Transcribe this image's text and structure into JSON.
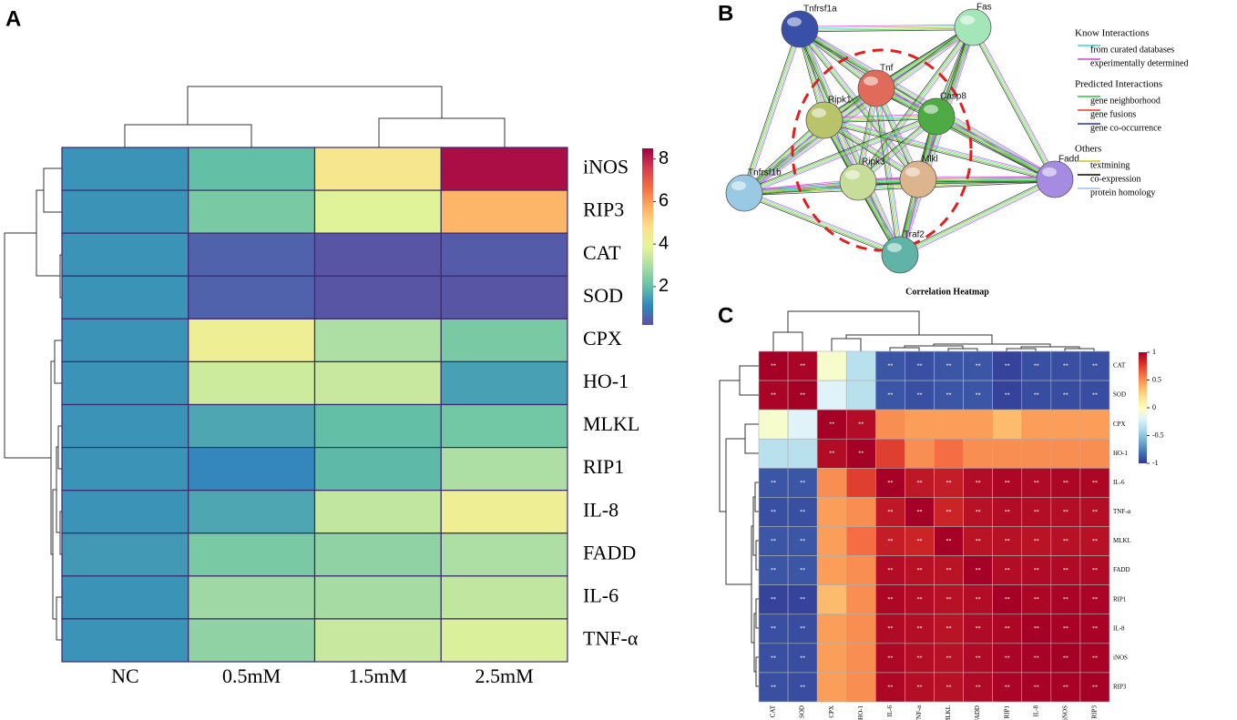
{
  "panel_labels": [
    "A",
    "B",
    "C"
  ],
  "chart_data": [
    {
      "type": "heatmap",
      "rows": [
        "iNOS",
        "RIP3",
        "CAT",
        "SOD",
        "CPX",
        "HO-1",
        "MLKL",
        "RIP1",
        "IL-8",
        "FADD",
        "IL-6",
        "TNF-α"
      ],
      "columns": [
        "NC",
        "0.5mM",
        "1.5mM",
        "2.5mM"
      ],
      "values": [
        [
          1.3,
          2.0,
          4.5,
          8.3
        ],
        [
          1.3,
          2.3,
          3.8,
          5.6
        ],
        [
          1.3,
          0.5,
          0.3,
          0.4
        ],
        [
          1.3,
          0.5,
          0.3,
          0.3
        ],
        [
          1.3,
          4.2,
          3.0,
          2.3
        ],
        [
          1.3,
          3.5,
          3.4,
          1.5
        ],
        [
          1.3,
          1.6,
          2.0,
          2.2
        ],
        [
          1.3,
          1.1,
          1.9,
          3.0
        ],
        [
          1.3,
          1.6,
          3.3,
          4.2
        ],
        [
          1.4,
          2.3,
          2.6,
          3.0
        ],
        [
          1.3,
          2.8,
          2.9,
          3.3
        ],
        [
          1.3,
          2.6,
          3.4,
          3.7
        ]
      ],
      "zlim": [
        0.2,
        8.5
      ],
      "zticks": [
        2,
        4,
        6,
        8
      ],
      "colormap": [
        "#5e4fa2",
        "#3288bd",
        "#66c2a5",
        "#abdda4",
        "#e6f598",
        "#fee08b",
        "#fdae61",
        "#f46d43",
        "#d53e4f",
        "#9e0142"
      ]
    },
    {
      "type": "heatmap",
      "title": "Correlation Heatmap",
      "rows": [
        "CAT",
        "SOD",
        "CPX",
        "HO-1",
        "IL-6",
        "TNF-α",
        "MLKL",
        "FADD",
        "RIP1",
        "IL-8",
        "iNOS",
        "RIP3"
      ],
      "columns": [
        "CAT",
        "SOD",
        "CPX",
        "HO-1",
        "IL-6",
        "TNF-α",
        "MLKL",
        "FADD",
        "RIP1",
        "IL-8",
        "iNOS",
        "RIP3"
      ],
      "values": [
        [
          1,
          0.98,
          -0.05,
          -0.35,
          -0.9,
          -0.92,
          -0.9,
          -0.9,
          -0.96,
          -0.92,
          -0.92,
          -0.92
        ],
        [
          0.98,
          1,
          -0.2,
          -0.35,
          -0.9,
          -0.92,
          -0.9,
          -0.9,
          -0.96,
          -0.93,
          -0.93,
          -0.93
        ],
        [
          -0.05,
          -0.2,
          1,
          0.95,
          0.5,
          0.45,
          0.45,
          0.45,
          0.35,
          0.45,
          0.45,
          0.45
        ],
        [
          -0.35,
          -0.35,
          0.95,
          1,
          0.75,
          0.5,
          0.6,
          0.5,
          0.5,
          0.5,
          0.5,
          0.5
        ],
        [
          -0.9,
          -0.9,
          0.5,
          0.75,
          1,
          0.9,
          0.88,
          0.95,
          0.97,
          0.96,
          0.97,
          0.97
        ],
        [
          -0.92,
          -0.92,
          0.45,
          0.5,
          0.9,
          1,
          0.85,
          0.93,
          0.95,
          0.94,
          0.94,
          0.94
        ],
        [
          -0.9,
          -0.9,
          0.45,
          0.6,
          0.88,
          0.85,
          1,
          0.92,
          0.93,
          0.92,
          0.93,
          0.93
        ],
        [
          -0.9,
          -0.9,
          0.45,
          0.5,
          0.95,
          0.93,
          0.92,
          1,
          0.95,
          0.96,
          0.96,
          0.96
        ],
        [
          -0.96,
          -0.96,
          0.35,
          0.5,
          0.97,
          0.95,
          0.93,
          0.95,
          1,
          0.97,
          0.98,
          0.98
        ],
        [
          -0.92,
          -0.93,
          0.45,
          0.5,
          0.96,
          0.94,
          0.92,
          0.96,
          0.97,
          1,
          0.99,
          0.99
        ],
        [
          -0.92,
          -0.93,
          0.45,
          0.5,
          0.97,
          0.94,
          0.93,
          0.96,
          0.98,
          0.99,
          1,
          0.99
        ],
        [
          -0.92,
          -0.93,
          0.45,
          0.5,
          0.97,
          0.94,
          0.93,
          0.96,
          0.98,
          0.99,
          0.99,
          1
        ]
      ],
      "annotations": [
        [
          "**",
          "**",
          null,
          null,
          "**",
          "**",
          "**",
          "**",
          "**",
          "**",
          "**",
          "**"
        ],
        [
          "**",
          "**",
          null,
          null,
          "**",
          "**",
          "**",
          "**",
          "**",
          "**",
          "**",
          "**"
        ],
        [
          null,
          null,
          "**",
          "**",
          null,
          null,
          null,
          null,
          null,
          null,
          null,
          null
        ],
        [
          null,
          null,
          "**",
          "**",
          null,
          null,
          null,
          null,
          null,
          null,
          null,
          null
        ],
        [
          "**",
          "**",
          null,
          null,
          "**",
          "**",
          "**",
          "**",
          "**",
          "**",
          "**",
          "**"
        ],
        [
          "**",
          "**",
          null,
          null,
          "**",
          "**",
          "**",
          "**",
          "**",
          "**",
          "**",
          "**"
        ],
        [
          "**",
          "**",
          null,
          null,
          "**",
          "**",
          "**",
          "**",
          "**",
          "**",
          "**",
          "**"
        ],
        [
          "**",
          "**",
          null,
          null,
          "**",
          "**",
          "**",
          "**",
          "**",
          "**",
          "**",
          "**"
        ],
        [
          "**",
          "**",
          null,
          null,
          "**",
          "**",
          "**",
          "**",
          "**",
          "**",
          "**",
          "**"
        ],
        [
          "**",
          "**",
          null,
          null,
          "**",
          "**",
          "**",
          "**",
          "**",
          "**",
          "**",
          "**"
        ],
        [
          "**",
          "**",
          null,
          null,
          "**",
          "**",
          "**",
          "**",
          "**",
          "**",
          "**",
          "**"
        ],
        [
          "**",
          "**",
          null,
          null,
          "**",
          "**",
          "**",
          "**",
          "**",
          "**",
          "**",
          "**"
        ]
      ],
      "zlim": [
        -1,
        1
      ],
      "zticks": [
        -1,
        -0.5,
        0,
        0.5,
        1
      ],
      "colormap": [
        "#313695",
        "#4575b4",
        "#74add1",
        "#abd9e9",
        "#e0f3f8",
        "#ffffbf",
        "#fee090",
        "#fdae61",
        "#f46d43",
        "#d73027",
        "#a50026"
      ]
    }
  ],
  "network": {
    "nodes": [
      {
        "label": "Tnfrsf1a",
        "color": "#3a4fa8"
      },
      {
        "label": "Fas",
        "color": "#a5e6b8"
      },
      {
        "label": "Tnf",
        "color": "#e06b5a"
      },
      {
        "label": "Ripk1",
        "color": "#b9c46a"
      },
      {
        "label": "Casp8",
        "color": "#4daa45"
      },
      {
        "label": "Tnfrsf1b",
        "color": "#9ac9e3"
      },
      {
        "label": "Ripk3",
        "color": "#c8dd9a"
      },
      {
        "label": "Mlkl",
        "color": "#dcb48e"
      },
      {
        "label": "Fadd",
        "color": "#a58ce0"
      },
      {
        "label": "Traf2",
        "color": "#5fb4a7"
      }
    ],
    "legend": [
      {
        "heading": "Know Interactions",
        "items": [
          {
            "label": "from curated databases",
            "color": "#33d6d6"
          },
          {
            "label": "experimentally determined",
            "color": "#d040d0"
          }
        ]
      },
      {
        "heading": "Predicted Interactions",
        "items": [
          {
            "label": "gene neighborhood",
            "color": "#30c040"
          },
          {
            "label": "gene fusions",
            "color": "#e04020"
          },
          {
            "label": "gene co-occurrence",
            "color": "#2030a0"
          }
        ]
      },
      {
        "heading": "Others",
        "items": [
          {
            "label": "textmining",
            "color": "#c8c820"
          },
          {
            "label": "co-expression",
            "color": "#000000"
          },
          {
            "label": "protein homology",
            "color": "#a8b8f0"
          }
        ]
      }
    ]
  }
}
